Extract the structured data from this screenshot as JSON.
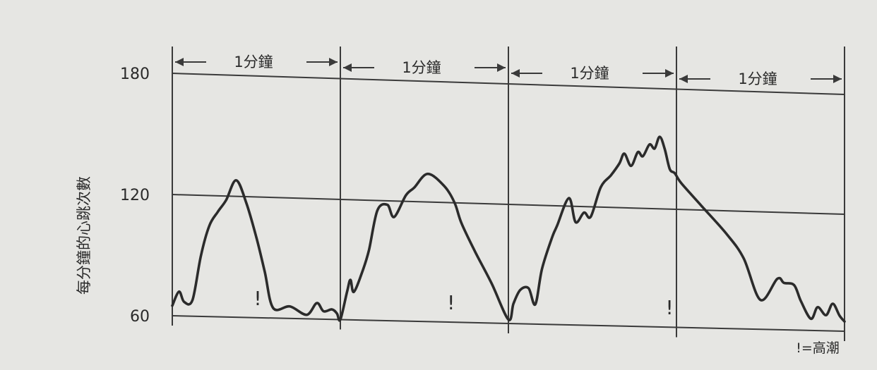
{
  "chart_data": {
    "type": "line",
    "ylabel": "每分鐘的心跳次數",
    "yticks": [
      180,
      120,
      60
    ],
    "ylim": [
      60,
      180
    ],
    "xlim": [
      0,
      4
    ],
    "grid": true,
    "segment_label": "1分鐘",
    "segments": 4,
    "climax_marker": "!",
    "climax_minutes": [
      0.5,
      1.65,
      2.95
    ],
    "legend_text": "!=高潮",
    "legend_position": "bottom-right",
    "colors": {
      "line": "#2b2b2b",
      "grid": "#3a3a3a",
      "background": "#e6e6e3"
    },
    "series": [
      {
        "x": [
          0,
          0.04,
          0.07,
          0.12,
          0.17,
          0.22,
          0.27,
          0.32,
          0.38,
          0.44,
          0.5,
          0.55,
          0.6,
          0.7,
          0.8,
          0.86,
          0.9,
          0.95,
          0.98,
          1.0,
          1.04,
          1.06,
          1.08,
          1.13,
          1.17,
          1.22,
          1.28,
          1.32,
          1.39,
          1.44,
          1.52,
          1.62,
          1.68,
          1.72,
          1.8,
          1.9,
          2.0,
          2.03,
          2.07,
          2.12,
          2.16,
          2.2,
          2.26,
          2.29,
          2.36,
          2.4,
          2.45,
          2.49,
          2.55,
          2.61,
          2.66,
          2.69,
          2.73,
          2.77,
          2.8,
          2.84,
          2.87,
          2.9,
          2.93,
          2.96,
          2.99,
          3.03,
          3.15,
          3.3,
          3.4,
          3.5,
          3.6,
          3.64,
          3.7,
          3.74,
          3.8,
          3.84,
          3.89,
          3.93,
          3.97,
          4.0
        ],
        "y": [
          65,
          72,
          67,
          68,
          90,
          105,
          112,
          118,
          128,
          117,
          100,
          83,
          65,
          66,
          62,
          68,
          64,
          65,
          63,
          60,
          74,
          80,
          74,
          84,
          95,
          115,
          118,
          112,
          123,
          127,
          134,
          128,
          120,
          110,
          96,
          80,
          62,
          70,
          77,
          78,
          70,
          88,
          104,
          110,
          124,
          112,
          117,
          115,
          130,
          136,
          142,
          147,
          141,
          148,
          146,
          152,
          150,
          156,
          150,
          140,
          138,
          133,
          122,
          108,
          96,
          75,
          86,
          84,
          83,
          75,
          66,
          72,
          68,
          74,
          68,
          65
        ]
      }
    ]
  }
}
